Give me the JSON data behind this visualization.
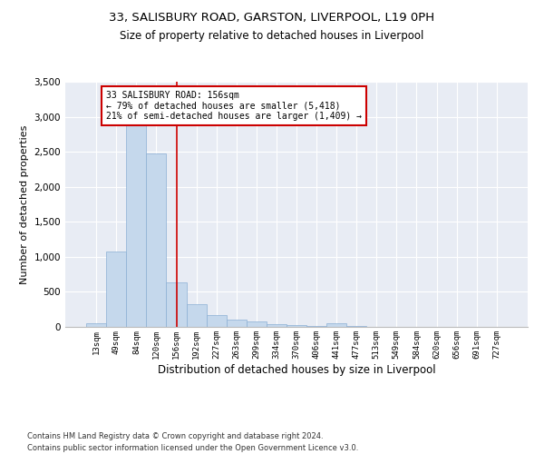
{
  "title1": "33, SALISBURY ROAD, GARSTON, LIVERPOOL, L19 0PH",
  "title2": "Size of property relative to detached houses in Liverpool",
  "xlabel": "Distribution of detached houses by size in Liverpool",
  "ylabel": "Number of detached properties",
  "footnote1": "Contains HM Land Registry data © Crown copyright and database right 2024.",
  "footnote2": "Contains public sector information licensed under the Open Government Licence v3.0.",
  "annotation_line1": "33 SALISBURY ROAD: 156sqm",
  "annotation_line2": "← 79% of detached houses are smaller (5,418)",
  "annotation_line3": "21% of semi-detached houses are larger (1,409) →",
  "bar_color": "#c5d8ec",
  "bar_edge_color": "#8bafd4",
  "vline_color": "#cc0000",
  "annotation_box_color": "#cc0000",
  "background_color": "#e8ecf4",
  "categories": [
    "13sqm",
    "49sqm",
    "84sqm",
    "120sqm",
    "156sqm",
    "192sqm",
    "227sqm",
    "263sqm",
    "299sqm",
    "334sqm",
    "370sqm",
    "406sqm",
    "441sqm",
    "477sqm",
    "513sqm",
    "549sqm",
    "584sqm",
    "620sqm",
    "656sqm",
    "691sqm",
    "727sqm"
  ],
  "values": [
    50,
    1080,
    2900,
    2480,
    630,
    330,
    175,
    110,
    75,
    45,
    25,
    15,
    55,
    8,
    5,
    3,
    3,
    2,
    1,
    1,
    0
  ],
  "property_size_bin_index": 4,
  "ylim": [
    0,
    3500
  ],
  "yticks": [
    0,
    500,
    1000,
    1500,
    2000,
    2500,
    3000,
    3500
  ]
}
